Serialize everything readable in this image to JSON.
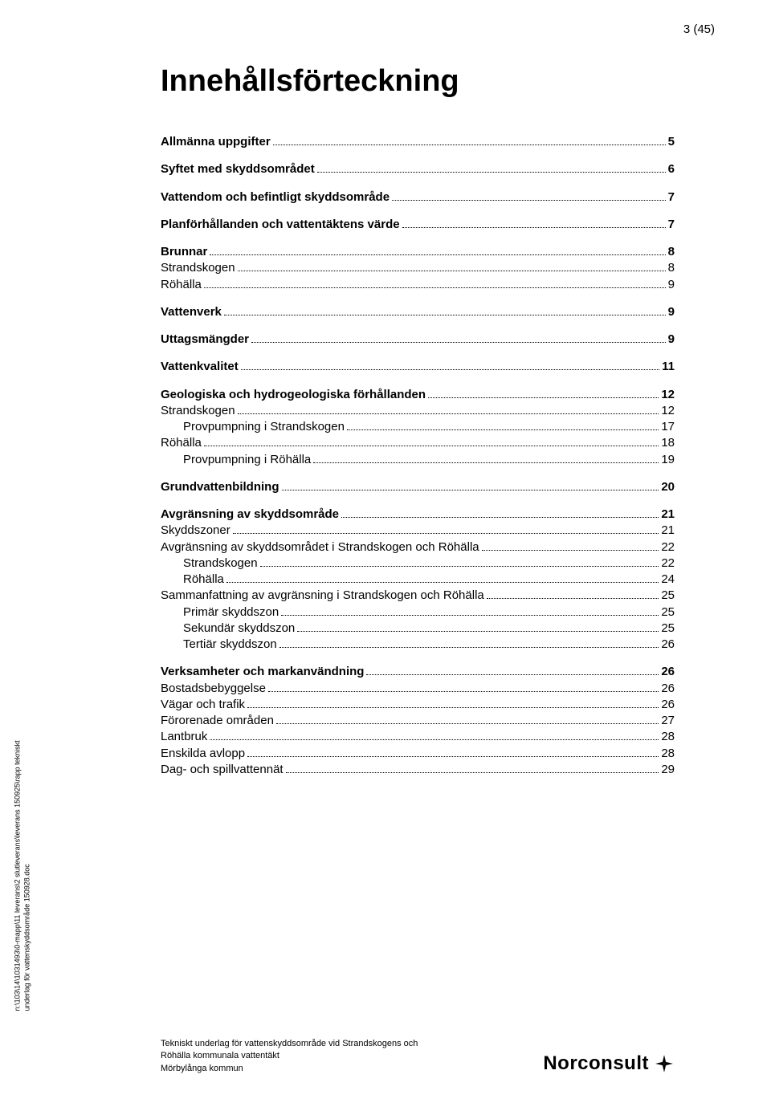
{
  "page_number": "3 (45)",
  "title": "Innehållsförteckning",
  "side_text_line1": "n:\\103\\14\\1031493\\0-mapp\\11 leverans\\2 slutleverans\\leverans 150925\\rapp tekniskt",
  "side_text_line2": "underlag för vattenskyddsområde 150928.doc",
  "toc": [
    {
      "title": "Allmänna uppgifter",
      "page": "5",
      "level": 0
    },
    {
      "title": "Syftet med skyddsområdet",
      "page": "6",
      "level": 0
    },
    {
      "title": "Vattendom och befintligt skyddsområde",
      "page": "7",
      "level": 0
    },
    {
      "title": "Planförhållanden och vattentäktens värde",
      "page": "7",
      "level": 0
    },
    {
      "title": "Brunnar",
      "page": "8",
      "level": 0
    },
    {
      "title": "Strandskogen",
      "page": "8",
      "level": 1
    },
    {
      "title": "Röhälla",
      "page": "9",
      "level": 1
    },
    {
      "title": "Vattenverk",
      "page": "9",
      "level": 0
    },
    {
      "title": "Uttagsmängder",
      "page": "9",
      "level": 0
    },
    {
      "title": "Vattenkvalitet",
      "page": "11",
      "level": 0
    },
    {
      "title": "Geologiska och hydrogeologiska förhållanden",
      "page": "12",
      "level": 0
    },
    {
      "title": "Strandskogen",
      "page": "12",
      "level": 1
    },
    {
      "title": "Provpumpning i Strandskogen",
      "page": "17",
      "level": 2
    },
    {
      "title": "Röhälla",
      "page": "18",
      "level": 1
    },
    {
      "title": "Provpumpning i Röhälla",
      "page": "19",
      "level": 2
    },
    {
      "title": "Grundvattenbildning",
      "page": "20",
      "level": 0
    },
    {
      "title": "Avgränsning av skyddsområde",
      "page": "21",
      "level": 0
    },
    {
      "title": "Skyddszoner",
      "page": "21",
      "level": 1
    },
    {
      "title": "Avgränsning av skyddsområdet i Strandskogen och Röhälla",
      "page": "22",
      "level": 1
    },
    {
      "title": "Strandskogen",
      "page": "22",
      "level": 2
    },
    {
      "title": "Röhälla",
      "page": "24",
      "level": 2
    },
    {
      "title": "Sammanfattning av avgränsning i Strandskogen och Röhälla",
      "page": "25",
      "level": 1
    },
    {
      "title": "Primär skyddszon",
      "page": "25",
      "level": 2
    },
    {
      "title": "Sekundär skyddszon",
      "page": "25",
      "level": 2
    },
    {
      "title": "Tertiär skyddszon",
      "page": "26",
      "level": 2
    },
    {
      "title": "Verksamheter och markanvändning",
      "page": "26",
      "level": 0
    },
    {
      "title": "Bostadsbebyggelse",
      "page": "26",
      "level": 1
    },
    {
      "title": "Vägar och trafik",
      "page": "26",
      "level": 1
    },
    {
      "title": "Förorenade områden",
      "page": "27",
      "level": 1
    },
    {
      "title": "Lantbruk",
      "page": "28",
      "level": 1
    },
    {
      "title": "Enskilda avlopp",
      "page": "28",
      "level": 1
    },
    {
      "title": "Dag- och spillvattennät",
      "page": "29",
      "level": 1
    }
  ],
  "footer": {
    "line1": "Tekniskt underlag för vattenskyddsområde vid Strandskogens och",
    "line2": "Röhälla kommunala vattentäkt",
    "line3": "Mörbylånga kommun"
  },
  "logo": {
    "text": "Norconsult",
    "mark_color": "#000000"
  }
}
